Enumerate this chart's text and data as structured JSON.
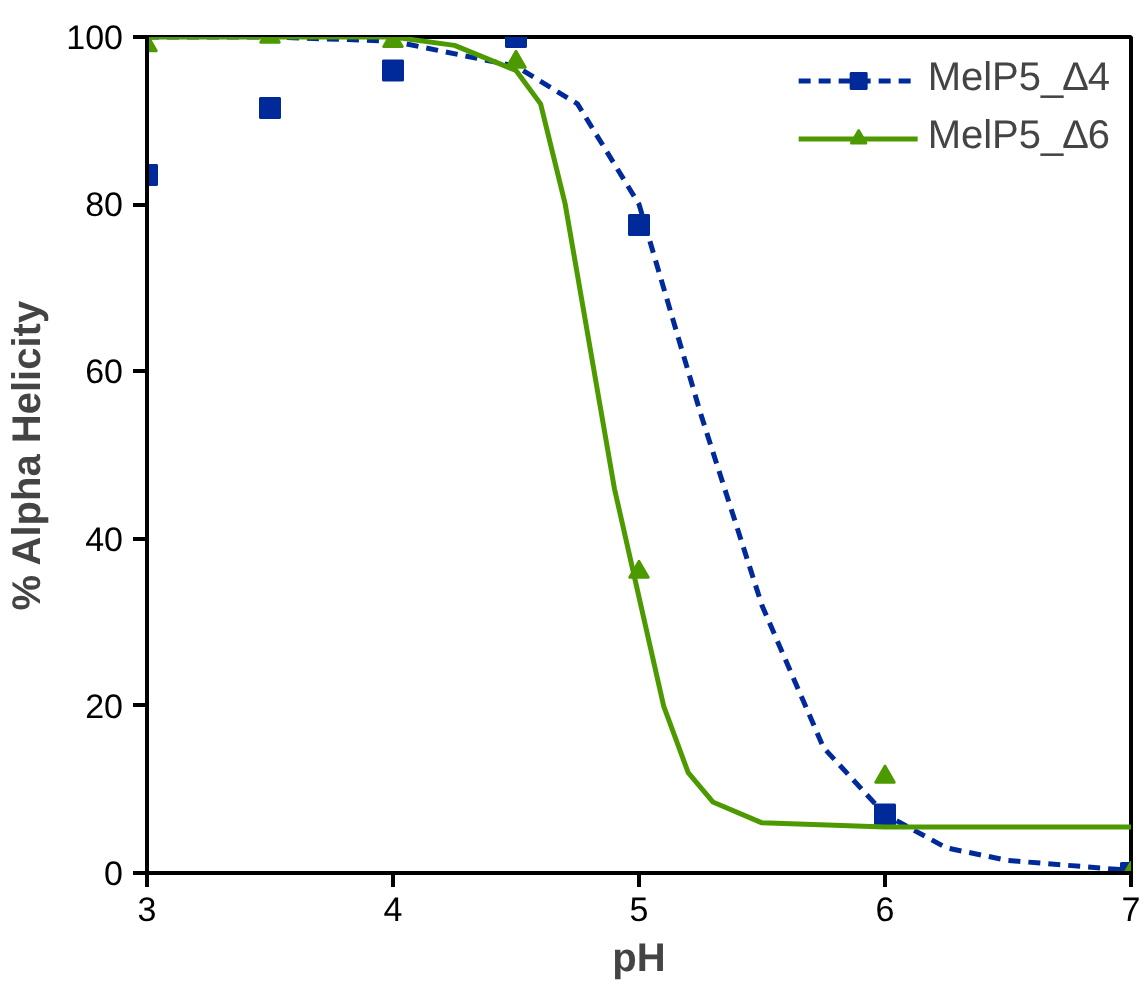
{
  "chart_data": {
    "type": "scatter",
    "xlabel": "pH",
    "ylabel": "% Alpha Helicity",
    "xlim": [
      3,
      7
    ],
    "ylim": [
      0,
      100
    ],
    "xticks": [
      3,
      4,
      5,
      6,
      7
    ],
    "yticks": [
      0,
      20,
      40,
      60,
      80,
      100
    ],
    "grid": false,
    "legend": "top right",
    "series": [
      {
        "name": "MelP5_∆4",
        "color": "#002a9a",
        "marker": "square",
        "x": [
          3,
          3.5,
          4,
          4.5,
          5,
          6,
          7
        ],
        "values": [
          83.5,
          91.5,
          96,
          100,
          77.5,
          7,
          0
        ]
      },
      {
        "type": "line",
        "color": "#002a9a",
        "line_style": "dashed",
        "marker": "none",
        "x": [
          3,
          3.5,
          4,
          4.5,
          4.75,
          5,
          5.25,
          5.5,
          5.75,
          6,
          6.25,
          6.5,
          7
        ],
        "values": [
          100,
          100,
          99.5,
          96.5,
          92,
          80,
          55,
          32,
          15,
          7,
          3,
          1.5,
          0.3
        ]
      },
      {
        "name": "MelP5_∆6",
        "color": "#4d9a00",
        "marker": "triangle",
        "x": [
          3,
          3.5,
          4,
          4.5,
          5,
          6,
          7
        ],
        "values": [
          99,
          100,
          99.5,
          97,
          36,
          11.5,
          0
        ]
      },
      {
        "type": "line",
        "color": "#4d9a00",
        "line_style": "solid",
        "marker": "none",
        "x": [
          3,
          4,
          4.25,
          4.5,
          4.6,
          4.7,
          4.8,
          4.9,
          5,
          5.1,
          5.2,
          5.3,
          5.5,
          6,
          7
        ],
        "values": [
          100,
          100,
          99,
          96,
          92,
          80,
          63,
          46,
          33,
          20,
          12,
          8.5,
          6,
          5.5,
          5.5
        ]
      }
    ]
  }
}
